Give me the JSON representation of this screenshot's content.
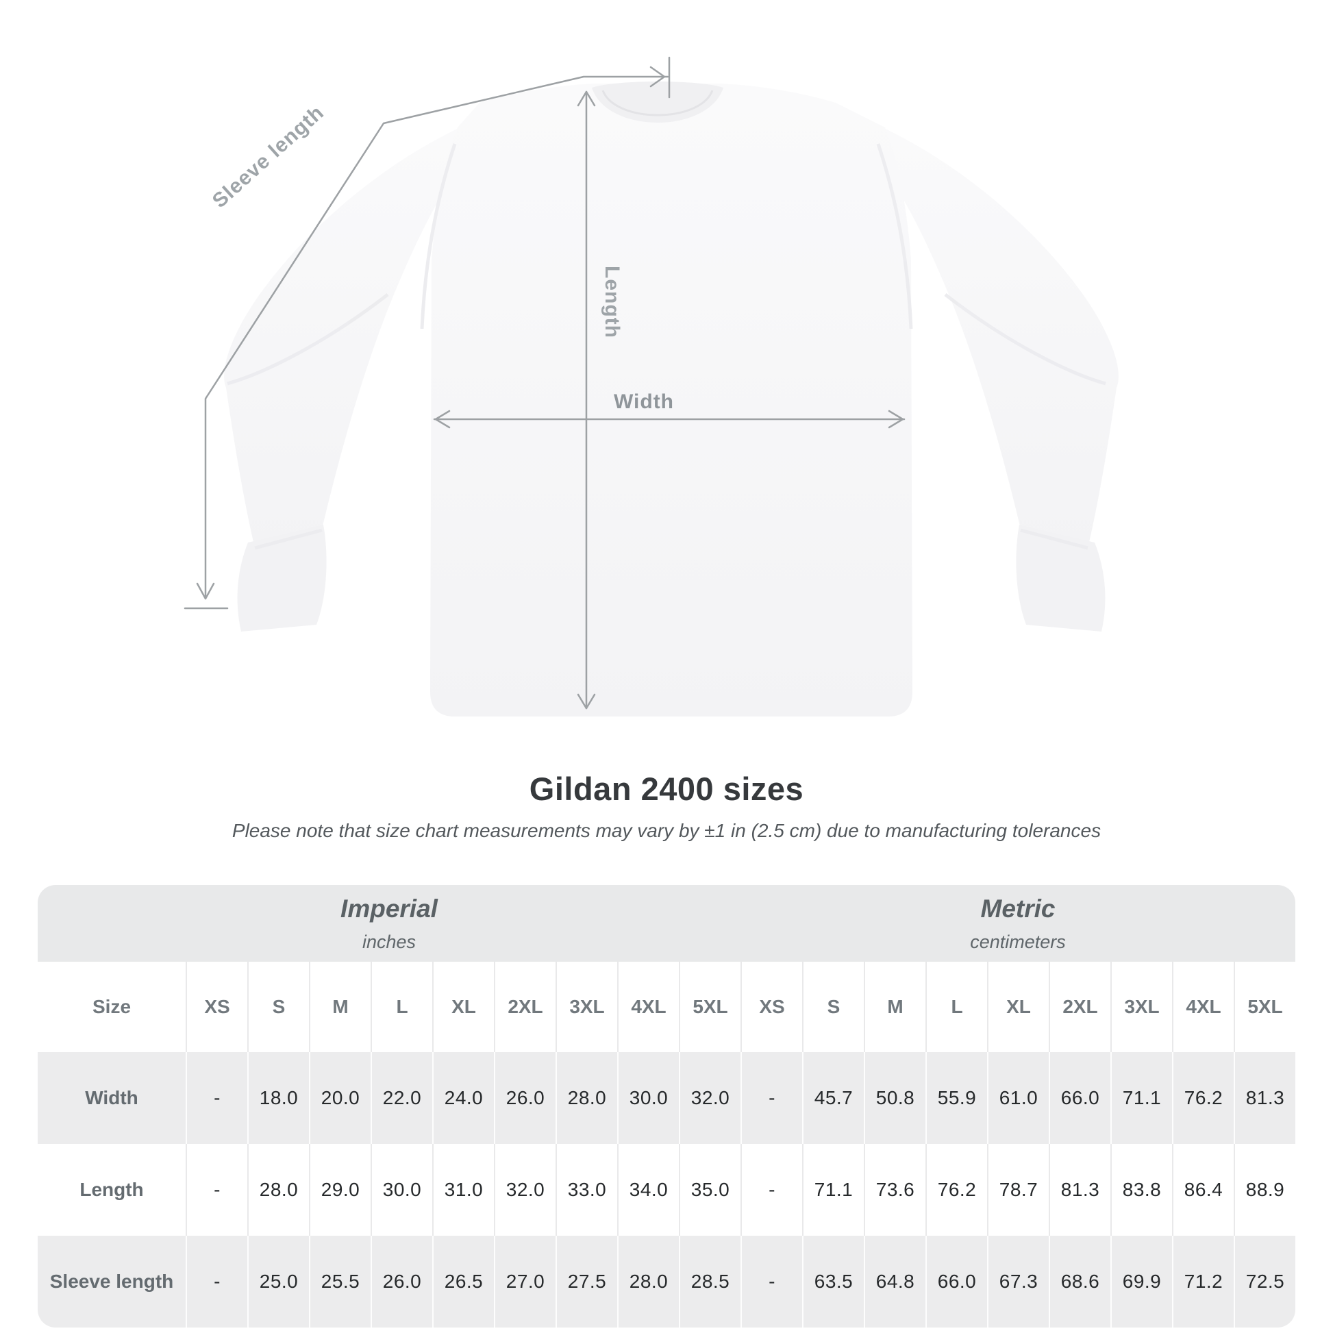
{
  "diagram": {
    "labels": {
      "sleeve_length": "Sleeve length",
      "length": "Length",
      "width": "Width"
    }
  },
  "title": "Gildan 2400 sizes",
  "subtitle": "Please note that size chart measurements may vary by ±1 in (2.5 cm) due to manufacturing tolerances",
  "table": {
    "unit_groups": [
      {
        "label": "Imperial",
        "sublabel": "inches"
      },
      {
        "label": "Metric",
        "sublabel": "centimeters"
      }
    ],
    "size_header": "Size",
    "sizes": [
      "XS",
      "S",
      "M",
      "L",
      "XL",
      "2XL",
      "3XL",
      "4XL",
      "5XL"
    ],
    "rows": [
      {
        "label": "Width",
        "imperial": [
          "-",
          "18.0",
          "20.0",
          "22.0",
          "24.0",
          "26.0",
          "28.0",
          "30.0",
          "32.0"
        ],
        "metric": [
          "-",
          "45.7",
          "50.8",
          "55.9",
          "61.0",
          "66.0",
          "71.1",
          "76.2",
          "81.3"
        ]
      },
      {
        "label": "Length",
        "imperial": [
          "-",
          "28.0",
          "29.0",
          "30.0",
          "31.0",
          "32.0",
          "33.0",
          "34.0",
          "35.0"
        ],
        "metric": [
          "-",
          "71.1",
          "73.6",
          "76.2",
          "78.7",
          "81.3",
          "83.8",
          "86.4",
          "88.9"
        ]
      },
      {
        "label": "Sleeve length",
        "imperial": [
          "-",
          "25.0",
          "25.5",
          "26.0",
          "26.5",
          "27.0",
          "27.5",
          "28.0",
          "28.5"
        ],
        "metric": [
          "-",
          "63.5",
          "64.8",
          "66.0",
          "67.3",
          "68.6",
          "69.9",
          "71.2",
          "72.5"
        ]
      }
    ]
  },
  "colors": {
    "table_band": "#e8e9ea",
    "row_alt": "#ececed",
    "value_text": "#26292b",
    "row_label_text": "#646b70",
    "size_header_text": "#71787d",
    "diagram_gray": "#9ea4a8",
    "arrow_gray": "#9da1a4",
    "title_text": "#36393c",
    "shirt_fill": "#f6f6f7"
  }
}
